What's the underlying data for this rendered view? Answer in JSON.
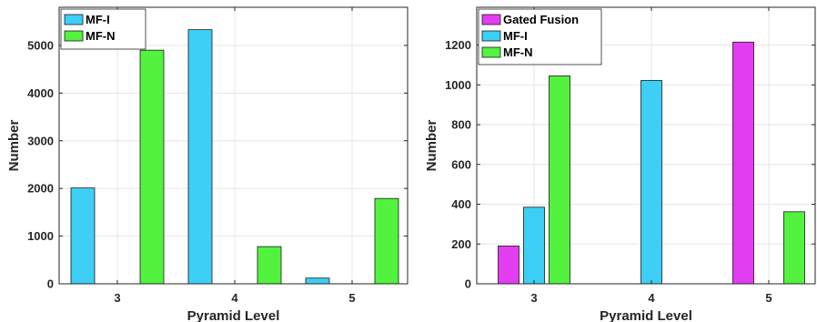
{
  "chart_data": [
    {
      "type": "bar",
      "categories": [
        "3",
        "4",
        "5"
      ],
      "series": [
        {
          "name": "MF-I",
          "color": "#3dcff5",
          "values": [
            2010,
            5330,
            120
          ]
        },
        {
          "name": "MF-N",
          "color": "#52f23f",
          "values": [
            4900,
            780,
            1790
          ]
        }
      ],
      "xlabel": "Pyramid Level",
      "ylabel": "Number",
      "ylim": [
        0,
        5800
      ],
      "yticks": [
        0,
        1000,
        2000,
        3000,
        4000,
        5000
      ],
      "grid": true,
      "legend": "top-left"
    },
    {
      "type": "bar",
      "categories": [
        "3",
        "4",
        "5"
      ],
      "series": [
        {
          "name": "Gated Fusion",
          "color": "#e23df0",
          "values": [
            190,
            null,
            1215
          ]
        },
        {
          "name": "MF-I",
          "color": "#3dcff5",
          "values": [
            385,
            1022,
            null
          ]
        },
        {
          "name": "MF-N",
          "color": "#52f23f",
          "values": [
            1045,
            null,
            362
          ]
        }
      ],
      "xlabel": "Pyramid Level",
      "ylabel": "Number",
      "ylim": [
        0,
        1390
      ],
      "yticks": [
        0,
        200,
        400,
        600,
        800,
        1000,
        1200
      ],
      "grid": true,
      "legend": "top-left"
    }
  ]
}
